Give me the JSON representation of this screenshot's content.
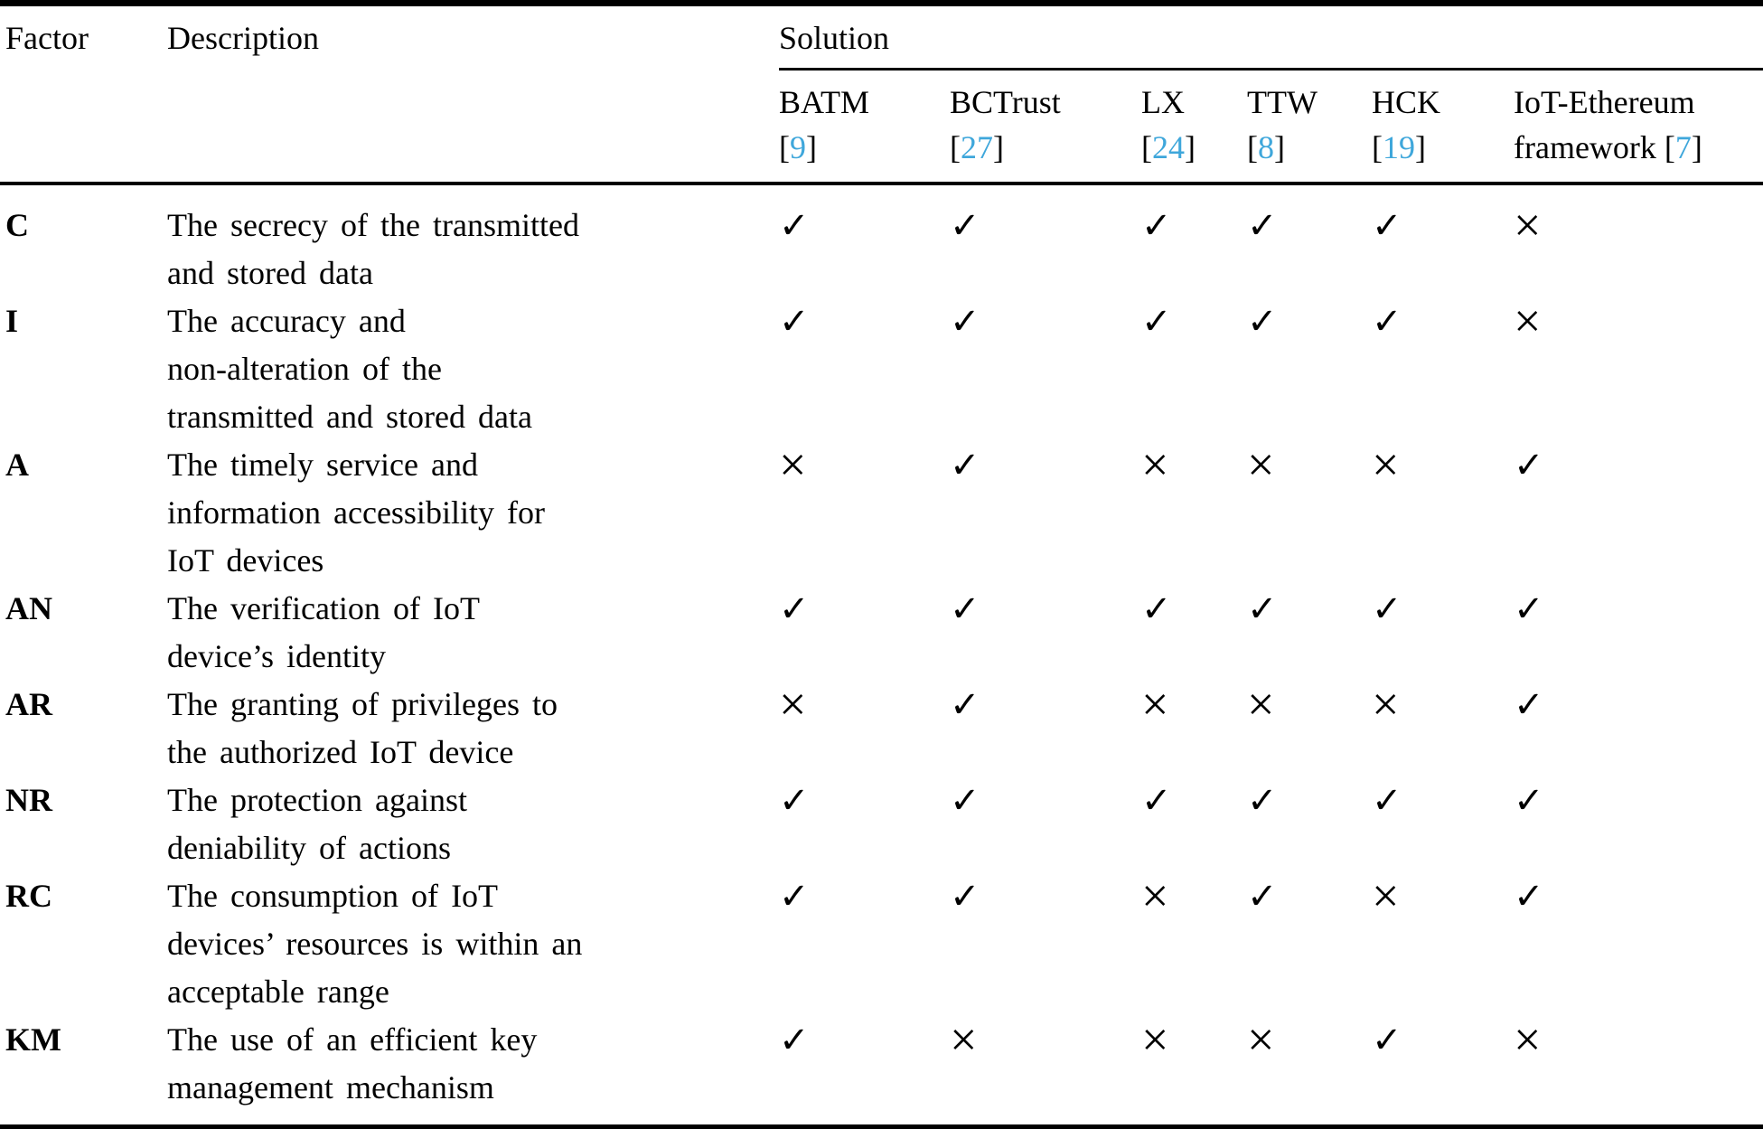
{
  "header": {
    "factor_label": "Factor",
    "description_label": "Description",
    "solution_label": "Solution",
    "solutions": [
      {
        "name": "BATM",
        "ref_lead": "",
        "bracket_open": "[",
        "ref": "9",
        "bracket_close": "]"
      },
      {
        "name": "BCTrust",
        "ref_lead": "",
        "bracket_open": "[",
        "ref": "27",
        "bracket_close": "]"
      },
      {
        "name": "LX",
        "ref_lead": "",
        "bracket_open": "[",
        "ref": "24",
        "bracket_close": "]"
      },
      {
        "name": "TTW",
        "ref_lead": "",
        "bracket_open": "[",
        "ref": "8",
        "bracket_close": "]"
      },
      {
        "name": "HCK",
        "ref_lead": "",
        "bracket_open": "[",
        "ref": "19",
        "bracket_close": "]"
      },
      {
        "name": "IoT-Ethereum",
        "ref_lead": "framework ",
        "bracket_open": "[",
        "ref": "7",
        "bracket_close": "]"
      }
    ]
  },
  "symbols": {
    "check": "✓",
    "cross": "×"
  },
  "colors": {
    "reference_blue": "#3fa7db",
    "text_black": "#000000"
  },
  "rows": [
    {
      "factor": "C",
      "description_lines": [
        "The secrecy of the transmitted",
        "and stored data"
      ],
      "marks": [
        "check",
        "check",
        "check",
        "check",
        "check",
        "cross"
      ]
    },
    {
      "factor": "I",
      "description_lines": [
        "The accuracy and",
        "non-alteration of the",
        "transmitted and stored data"
      ],
      "marks": [
        "check",
        "check",
        "check",
        "check",
        "check",
        "cross"
      ]
    },
    {
      "factor": "A",
      "description_lines": [
        "The timely service and",
        "information accessibility for",
        "IoT devices"
      ],
      "marks": [
        "cross",
        "check",
        "cross",
        "cross",
        "cross",
        "check"
      ]
    },
    {
      "factor": "AN",
      "description_lines": [
        "The verification of IoT",
        "device’s identity"
      ],
      "marks": [
        "check",
        "check",
        "check",
        "check",
        "check",
        "check"
      ]
    },
    {
      "factor": "AR",
      "description_lines": [
        "The granting of privileges to",
        "the authorized IoT device"
      ],
      "marks": [
        "cross",
        "check",
        "cross",
        "cross",
        "cross",
        "check"
      ]
    },
    {
      "factor": "NR",
      "description_lines": [
        "The protection against",
        "deniability of actions"
      ],
      "marks": [
        "check",
        "check",
        "check",
        "check",
        "check",
        "check"
      ]
    },
    {
      "factor": "RC",
      "description_lines": [
        "The consumption of IoT",
        "devices’ resources is within an",
        "acceptable range"
      ],
      "marks": [
        "check",
        "check",
        "cross",
        "check",
        "cross",
        "check"
      ]
    },
    {
      "factor": "KM",
      "description_lines": [
        "The use of an efficient key",
        "management mechanism"
      ],
      "marks": [
        "check",
        "cross",
        "cross",
        "cross",
        "check",
        "cross"
      ]
    }
  ]
}
